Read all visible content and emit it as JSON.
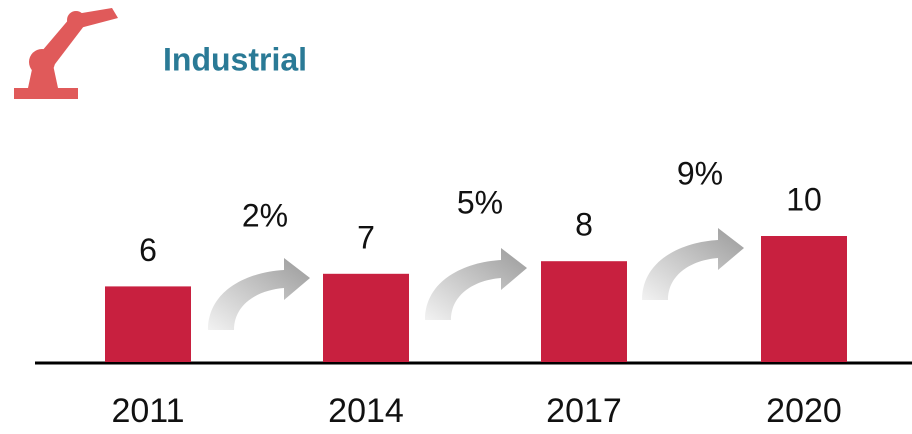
{
  "chart_data": {
    "type": "bar",
    "title": "Industrial",
    "categories": [
      "2011",
      "2014",
      "2017",
      "2020"
    ],
    "values": [
      6,
      7,
      8,
      10
    ],
    "color": "#c8203f",
    "annotations": [
      "2%",
      "5%",
      "9%"
    ]
  }
}
